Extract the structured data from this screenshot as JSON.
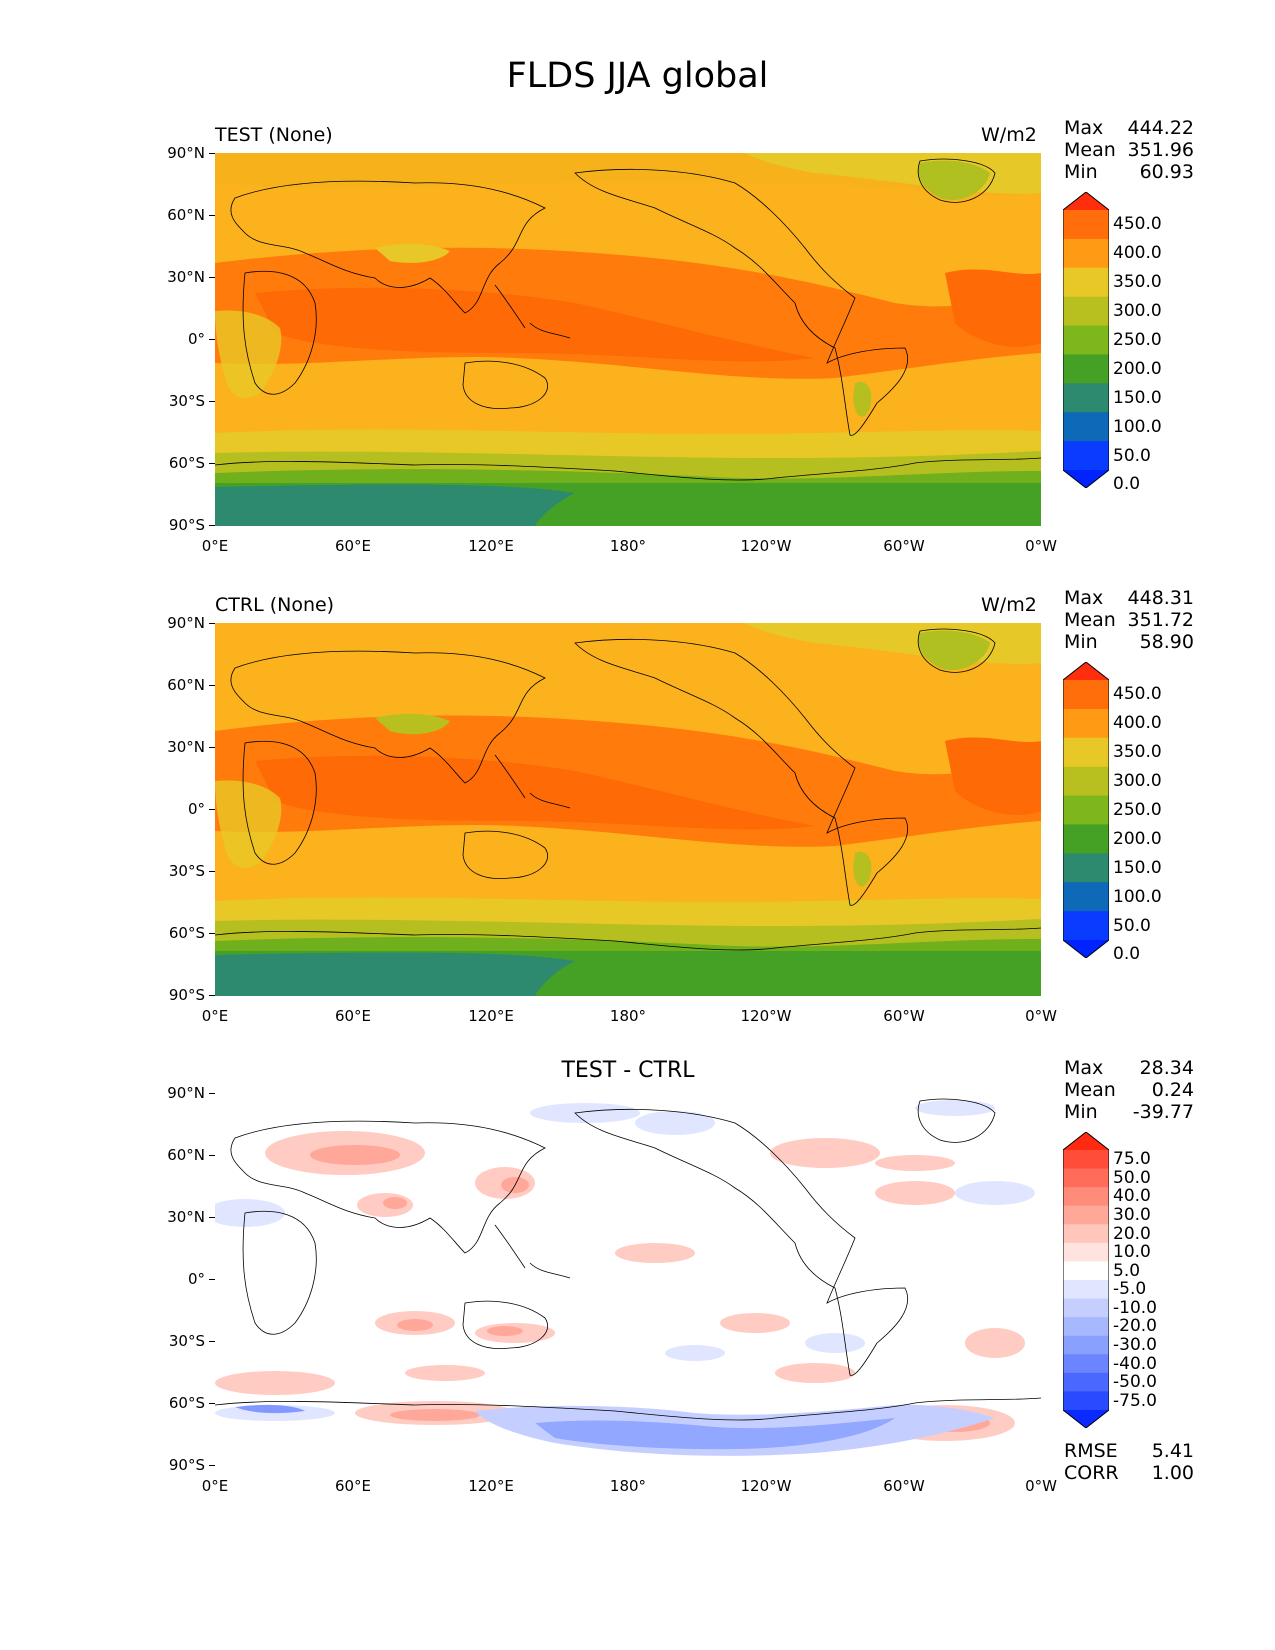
{
  "figure_title": "FLDS JJA global",
  "lat_labels": [
    "90°N",
    "60°N",
    "30°N",
    "0°",
    "30°S",
    "60°S",
    "90°S"
  ],
  "lon_labels": [
    "0°E",
    "60°E",
    "120°E",
    "180°",
    "120°W",
    "60°W",
    "0°W"
  ],
  "panels": [
    {
      "title": "TEST (None)",
      "units": "W/m2",
      "stats": {
        "max_label": "Max",
        "max": "444.22",
        "mean_label": "Mean",
        "mean": "351.96",
        "min_label": "Min",
        "min": "60.93"
      },
      "colorbar": {
        "labels": [
          "450.0",
          "400.0",
          "350.0",
          "300.0",
          "250.0",
          "200.0",
          "150.0",
          "100.0",
          "50.0",
          "0.0"
        ],
        "colors": [
          "#ff2e0c",
          "#ff6e0a",
          "#ff9a14",
          "#e8c826",
          "#b8c020",
          "#7db71c",
          "#44a125",
          "#2e8a6e",
          "#0e69b8",
          "#0a3cff",
          "#0023ff"
        ]
      }
    },
    {
      "title": "CTRL (None)",
      "units": "W/m2",
      "stats": {
        "max_label": "Max",
        "max": "448.31",
        "mean_label": "Mean",
        "mean": "351.72",
        "min_label": "Min",
        "min": "58.90"
      },
      "colorbar": {
        "labels": [
          "450.0",
          "400.0",
          "350.0",
          "300.0",
          "250.0",
          "200.0",
          "150.0",
          "100.0",
          "50.0",
          "0.0"
        ],
        "colors": [
          "#ff2e0c",
          "#ff6e0a",
          "#ff9a14",
          "#e8c826",
          "#b8c020",
          "#7db71c",
          "#44a125",
          "#2e8a6e",
          "#0e69b8",
          "#0a3cff",
          "#0023ff"
        ]
      }
    },
    {
      "title": "TEST - CTRL",
      "units": "",
      "stats": {
        "max_label": "Max",
        "max": "28.34",
        "mean_label": "Mean",
        "mean": "0.24",
        "min_label": "Min",
        "min": "-39.77"
      },
      "colorbar": {
        "labels": [
          "75.0",
          "50.0",
          "40.0",
          "30.0",
          "20.0",
          "10.0",
          "5.0",
          "-5.0",
          "-10.0",
          "-20.0",
          "-30.0",
          "-40.0",
          "-50.0",
          "-75.0"
        ],
        "colors": [
          "#ff2a10",
          "#ff4d3a",
          "#ff6c5a",
          "#ff8c7a",
          "#ffa89a",
          "#ffc6bc",
          "#ffe3de",
          "#ffffff",
          "#e0e6ff",
          "#c4cfff",
          "#a8b8ff",
          "#8aa0ff",
          "#6a85ff",
          "#4a68ff",
          "#2a4aff",
          "#0a2aff"
        ]
      },
      "rmse_label": "RMSE",
      "rmse": "5.41",
      "corr_label": "CORR",
      "corr": "1.00"
    }
  ]
}
